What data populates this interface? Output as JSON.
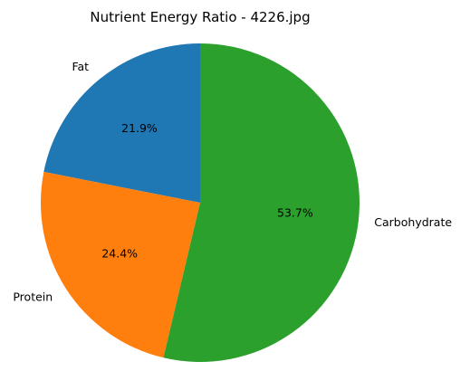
{
  "chart_data": {
    "type": "pie",
    "title": "Nutrient Energy Ratio - 4226.jpg",
    "start_angle_deg": 90,
    "direction": "counterclockwise",
    "slices": [
      {
        "label": "Fat",
        "value": 21.9,
        "pct_label": "21.9%",
        "color": "#1f77b4"
      },
      {
        "label": "Protein",
        "value": 24.4,
        "pct_label": "24.4%",
        "color": "#ff7f0e"
      },
      {
        "label": "Carbohydrate",
        "value": 53.7,
        "pct_label": "53.7%",
        "color": "#2ca02c"
      }
    ]
  }
}
